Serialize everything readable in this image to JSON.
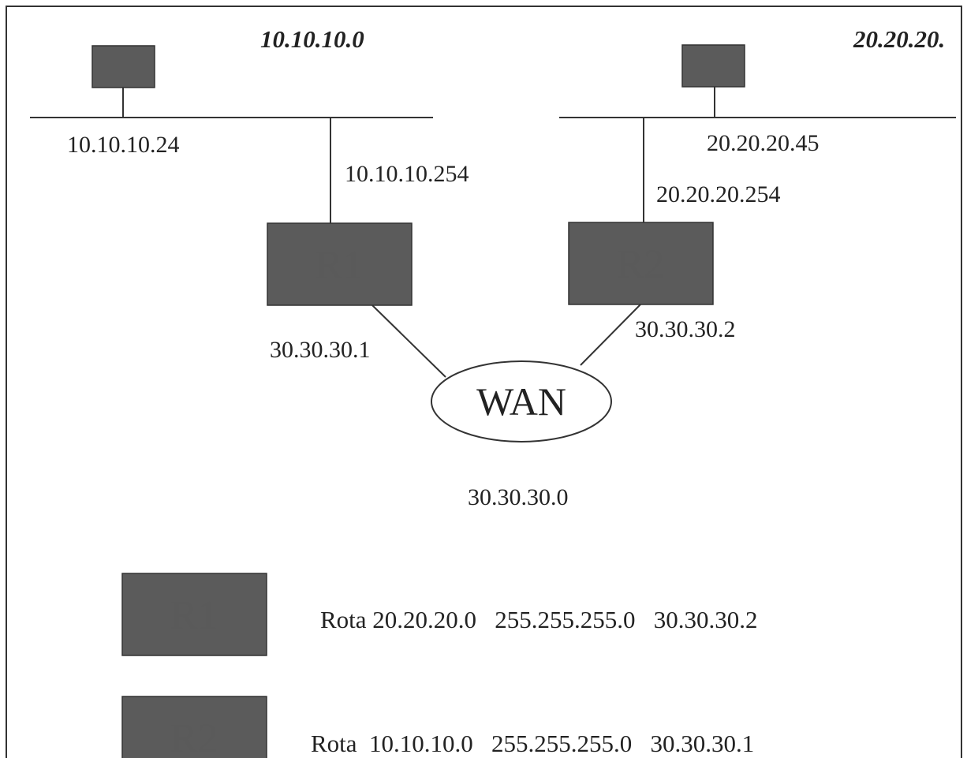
{
  "networks": {
    "left_name": "10.10.10.0",
    "right_name": "20.20.20.",
    "wan_name": "30.30.30.0"
  },
  "hosts": {
    "left_ip": "10.10.10.24",
    "right_ip": "20.20.20.45"
  },
  "routers": {
    "r1": {
      "label": "R1",
      "lan_ip": "10.10.10.254",
      "wan_ip": "30.30.30.1"
    },
    "r2": {
      "label": "R2",
      "lan_ip": "20.20.20.254",
      "wan_ip": "30.30.30.2"
    }
  },
  "wan": {
    "label": "WAN"
  },
  "routes": [
    {
      "router": "R1",
      "text": "Rota 20.20.20.0   255.255.255.0   30.30.30.2"
    },
    {
      "router": "R2",
      "text": "Rota  10.10.10.0   255.255.255.0   30.30.30.1"
    }
  ],
  "colors": {
    "router_fill": "#5b5b5b",
    "router_text": "#5a5a5a",
    "line": "#333333",
    "border": "#333333"
  }
}
